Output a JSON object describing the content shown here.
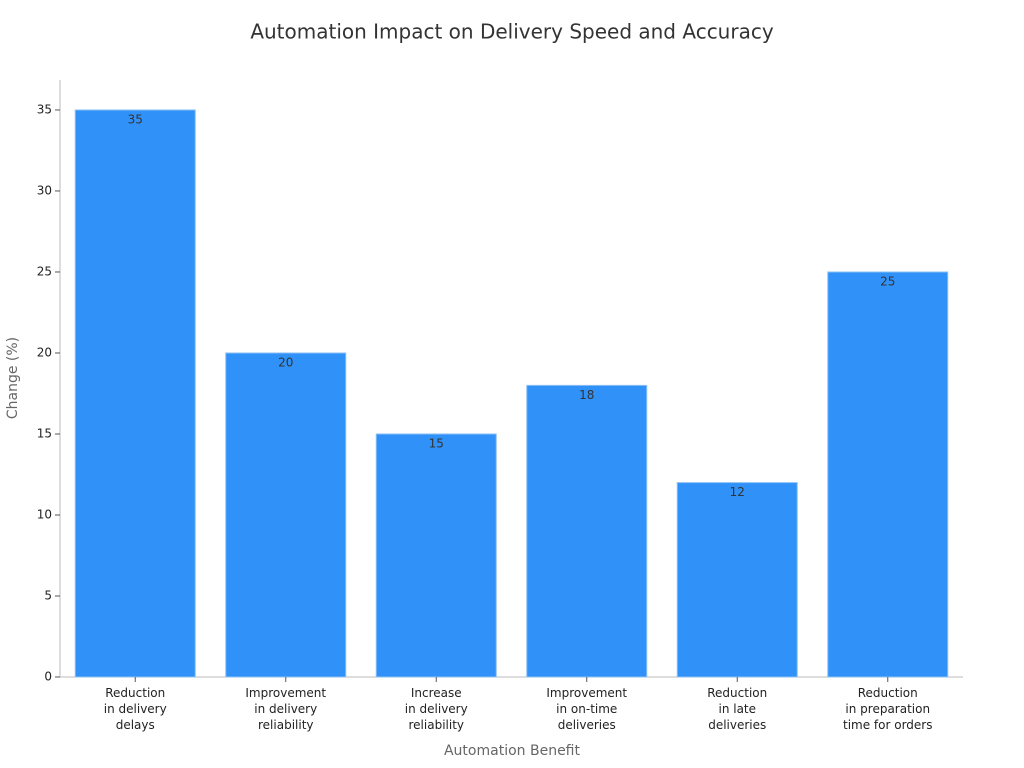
{
  "chart_data": {
    "type": "bar",
    "title": "Automation Impact on Delivery Speed and Accuracy",
    "x_label": "Automation Benefit",
    "y_label": "Change (%)",
    "categories": [
      "Reduction\nin delivery\ndelays",
      "Improvement\nin delivery\nreliability",
      "Increase\nin delivery\nreliability",
      "Improvement\nin on-time\ndeliveries",
      "Reduction\nin late\ndeliveries",
      "Reduction\nin preparation\ntime for orders"
    ],
    "values": [
      35,
      20,
      15,
      18,
      12,
      25
    ],
    "color": "#3092f8",
    "ylim": [
      0,
      36.85
    ],
    "yticks": [
      0,
      5,
      10,
      15,
      20,
      25,
      30,
      35
    ],
    "grid": false
  }
}
